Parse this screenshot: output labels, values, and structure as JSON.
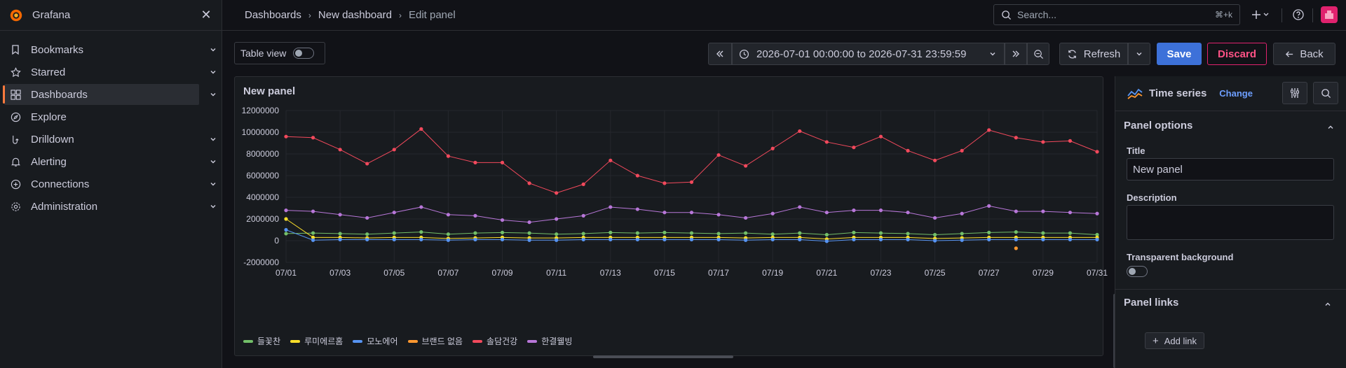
{
  "app": {
    "name": "Grafana"
  },
  "sidebar": {
    "items": [
      {
        "label": "Bookmarks",
        "icon": "bookmark-icon",
        "has_chevron": true
      },
      {
        "label": "Starred",
        "icon": "star-icon",
        "has_chevron": true
      },
      {
        "label": "Dashboards",
        "icon": "apps-icon",
        "has_chevron": true,
        "active": true
      },
      {
        "label": "Explore",
        "icon": "compass-icon",
        "has_chevron": false
      },
      {
        "label": "Drilldown",
        "icon": "drilldown-icon",
        "has_chevron": true
      },
      {
        "label": "Alerting",
        "icon": "bell-icon",
        "has_chevron": true
      },
      {
        "label": "Connections",
        "icon": "connections-icon",
        "has_chevron": true
      },
      {
        "label": "Administration",
        "icon": "gear-icon",
        "has_chevron": true
      }
    ]
  },
  "breadcrumb": [
    "Dashboards",
    "New dashboard",
    "Edit panel"
  ],
  "search": {
    "placeholder": "Search...",
    "shortcut": "⌘+k"
  },
  "toolbar": {
    "table_view_label": "Table view",
    "time_range": "2026-07-01 00:00:00 to 2026-07-31 23:59:59",
    "refresh_label": "Refresh",
    "save_label": "Save",
    "discard_label": "Discard",
    "back_label": "Back"
  },
  "panel": {
    "title": "New panel"
  },
  "colors": {
    "accent": "#3d71d9",
    "danger": "#e0226e",
    "green": "#73bf69",
    "yellow": "#fade2a",
    "blue": "#5794f2",
    "orange": "#ff9830",
    "red": "#f2495c",
    "purple": "#b877d9"
  },
  "chart_data": {
    "type": "line",
    "title": "New panel",
    "xlabel": "",
    "ylabel": "",
    "ylim": [
      -2000000,
      12000000
    ],
    "y_ticks": [
      "12000000",
      "10000000",
      "8000000",
      "6000000",
      "4000000",
      "2000000",
      "0",
      "-2000000"
    ],
    "x_ticks": [
      "07/01",
      "07/03",
      "07/05",
      "07/07",
      "07/09",
      "07/11",
      "07/13",
      "07/15",
      "07/17",
      "07/19",
      "07/21",
      "07/23",
      "07/25",
      "07/27",
      "07/29",
      "07/31"
    ],
    "x_days": [
      1,
      31
    ],
    "grid": true,
    "legend_position": "bottom-left",
    "series": [
      {
        "name": "들꽃찬",
        "color": "#73bf69",
        "days": [
          1,
          2,
          3,
          4,
          5,
          6,
          7,
          8,
          9,
          10,
          11,
          12,
          13,
          14,
          15,
          16,
          17,
          18,
          19,
          20,
          21,
          22,
          23,
          24,
          25,
          26,
          27,
          28,
          29,
          30,
          31
        ],
        "values": [
          650000,
          700000,
          650000,
          600000,
          700000,
          800000,
          600000,
          700000,
          750000,
          700000,
          600000,
          650000,
          750000,
          700000,
          750000,
          700000,
          650000,
          700000,
          600000,
          700000,
          550000,
          750000,
          700000,
          650000,
          550000,
          650000,
          750000,
          800000,
          700000,
          700000,
          550000
        ]
      },
      {
        "name": "루미에르홈",
        "color": "#fade2a",
        "days": [
          1,
          2,
          3,
          4,
          5,
          6,
          7,
          8,
          9,
          10,
          11,
          12,
          13,
          14,
          15,
          16,
          17,
          18,
          19,
          20,
          21,
          22,
          23,
          24,
          25,
          26,
          27,
          28,
          29,
          30,
          31
        ],
        "values": [
          2000000,
          300000,
          300000,
          250000,
          300000,
          300000,
          200000,
          250000,
          300000,
          250000,
          250000,
          300000,
          300000,
          300000,
          300000,
          300000,
          300000,
          250000,
          300000,
          300000,
          150000,
          300000,
          300000,
          300000,
          200000,
          250000,
          300000,
          300000,
          300000,
          300000,
          300000
        ]
      },
      {
        "name": "모노에어",
        "color": "#5794f2",
        "days": [
          1,
          2,
          3,
          4,
          5,
          6,
          7,
          8,
          9,
          10,
          11,
          12,
          13,
          14,
          15,
          16,
          17,
          18,
          19,
          20,
          21,
          22,
          23,
          24,
          25,
          26,
          27,
          28,
          29,
          30,
          31
        ],
        "values": [
          1000000,
          50000,
          100000,
          100000,
          100000,
          100000,
          50000,
          100000,
          100000,
          50000,
          50000,
          100000,
          100000,
          100000,
          100000,
          100000,
          100000,
          50000,
          100000,
          100000,
          -50000,
          100000,
          100000,
          100000,
          0,
          50000,
          100000,
          100000,
          100000,
          100000,
          100000
        ]
      },
      {
        "name": "브랜드 없음",
        "color": "#ff9830",
        "days": [
          28
        ],
        "values": [
          -700000
        ]
      },
      {
        "name": "솔담건강",
        "color": "#f2495c",
        "days": [
          1,
          2,
          3,
          4,
          5,
          6,
          7,
          8,
          9,
          10,
          11,
          12,
          13,
          14,
          15,
          16,
          17,
          18,
          19,
          20,
          21,
          22,
          23,
          24,
          25,
          26,
          27,
          28,
          29,
          30,
          31
        ],
        "values": [
          9600000,
          9500000,
          8400000,
          7100000,
          8400000,
          10300000,
          7800000,
          7200000,
          7200000,
          5300000,
          4400000,
          5200000,
          7400000,
          6000000,
          5300000,
          5400000,
          7900000,
          6900000,
          8500000,
          10100000,
          9100000,
          8600000,
          9600000,
          8300000,
          7400000,
          8300000,
          10200000,
          9500000,
          9100000,
          9200000,
          8200000
        ]
      },
      {
        "name": "한결웰빙",
        "color": "#b877d9",
        "days": [
          1,
          2,
          3,
          4,
          5,
          6,
          7,
          8,
          9,
          10,
          11,
          12,
          13,
          14,
          15,
          16,
          17,
          18,
          19,
          20,
          21,
          22,
          23,
          24,
          25,
          26,
          27,
          28,
          29,
          30,
          31
        ],
        "values": [
          2800000,
          2700000,
          2400000,
          2100000,
          2600000,
          3100000,
          2400000,
          2300000,
          1900000,
          1700000,
          2000000,
          2300000,
          3100000,
          2900000,
          2600000,
          2600000,
          2400000,
          2100000,
          2500000,
          3100000,
          2600000,
          2800000,
          2800000,
          2600000,
          2100000,
          2500000,
          3200000,
          2700000,
          2700000,
          2600000,
          2500000
        ]
      }
    ]
  },
  "options": {
    "viz_name": "Time series",
    "change_label": "Change",
    "panel_options_title": "Panel options",
    "title_label": "Title",
    "title_value": "New panel",
    "description_label": "Description",
    "description_value": "",
    "transparent_label": "Transparent background",
    "panel_links_title": "Panel links",
    "add_link_label": "Add link"
  }
}
